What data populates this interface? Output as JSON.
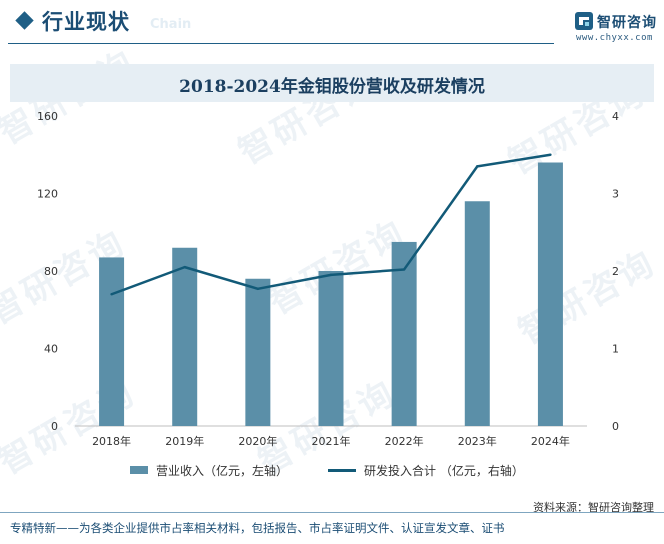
{
  "header": {
    "section_title": "行业现状",
    "ghost_text": "Chain"
  },
  "brand": {
    "name": "智研咨询",
    "url": "www.chyxx.com"
  },
  "chart_data": {
    "type": "bar",
    "title": "2018-2024年金钼股份营收及研发情况",
    "categories": [
      "2018年",
      "2019年",
      "2020年",
      "2021年",
      "2022年",
      "2023年",
      "2024年"
    ],
    "series": [
      {
        "name": "营业收入（亿元，左轴）",
        "type": "bar",
        "axis": "left",
        "values": [
          87,
          92,
          76,
          80,
          95,
          116,
          136
        ]
      },
      {
        "name": "研发投入合计 （亿元，右轴）",
        "type": "line",
        "axis": "right",
        "values": [
          1.7,
          2.05,
          1.77,
          1.95,
          2.02,
          3.35,
          3.5
        ]
      }
    ],
    "y_left": {
      "ticks": [
        "0",
        "40",
        "80",
        "120",
        "160"
      ],
      "ylim": [
        0,
        160
      ]
    },
    "y_right": {
      "ticks": [
        "0",
        "1",
        "2",
        "3",
        "4"
      ],
      "ylim": [
        0,
        4
      ]
    },
    "grid": false,
    "legend_position": "bottom",
    "colors": {
      "bar": "#5b8fa8",
      "line": "#125a78"
    }
  },
  "legend": {
    "bar_label": "营业收入（亿元，左轴）",
    "line_label": "研发投入合计 （亿元，右轴）"
  },
  "source_text": "资料来源：智研咨询整理",
  "footer_text": "专精特新——为各类企业提供市占率相关材料，包括报告、市占率证明文件、认证宣发文章、证书",
  "watermark_text": "智研咨询"
}
